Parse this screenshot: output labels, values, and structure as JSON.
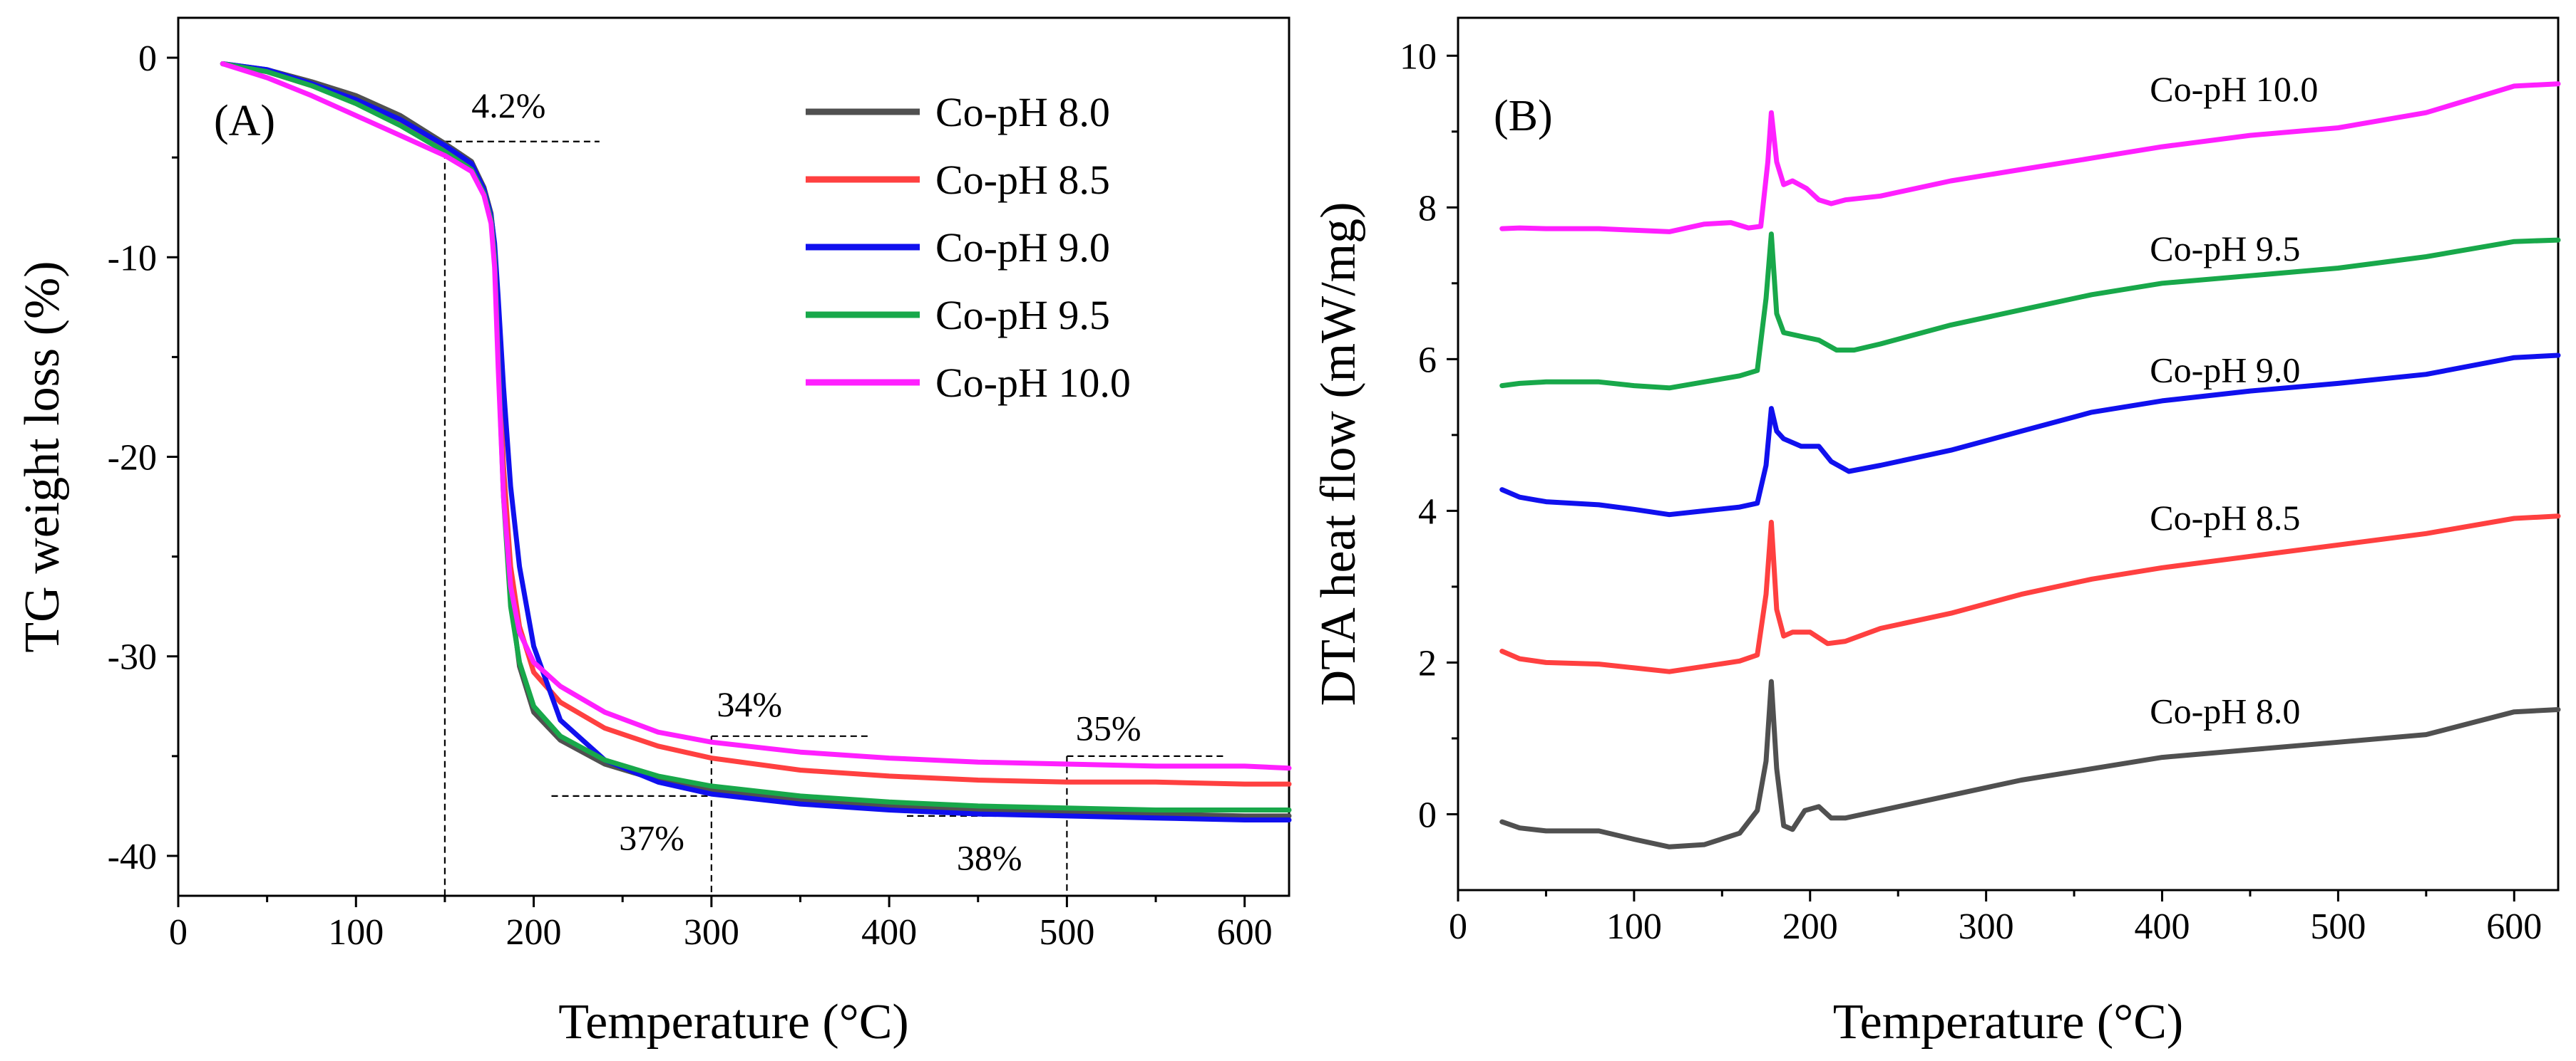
{
  "chart_data": [
    {
      "panel": "A",
      "type": "line",
      "panel_label": "(A)",
      "xlabel": "Temperature (°C)",
      "ylabel": "TG weight loss (%)",
      "xlim": [
        0,
        625
      ],
      "ylim": [
        -42,
        2
      ],
      "xticks": [
        0,
        100,
        200,
        300,
        400,
        500,
        600
      ],
      "yticks": [
        0,
        -10,
        -20,
        -30,
        -40
      ],
      "grid": false,
      "legend_position": "top-right",
      "series": [
        {
          "name": "Co-pH 8.0",
          "color": "#505050",
          "x": [
            25,
            50,
            75,
            100,
            125,
            150,
            165,
            172,
            176,
            178,
            180,
            183,
            187,
            192,
            200,
            215,
            240,
            270,
            300,
            350,
            400,
            450,
            500,
            550,
            600,
            625
          ],
          "y": [
            -0.3,
            -0.6,
            -1.2,
            -1.9,
            -2.9,
            -4.3,
            -5.2,
            -6.5,
            -7.8,
            -9.5,
            -14,
            -21,
            -27,
            -30.5,
            -32.8,
            -34.2,
            -35.4,
            -36.2,
            -36.7,
            -37.2,
            -37.5,
            -37.7,
            -37.8,
            -37.9,
            -38.0,
            -38.0
          ]
        },
        {
          "name": "Co-pH 8.5",
          "color": "#ff4040",
          "x": [
            25,
            50,
            75,
            100,
            125,
            150,
            165,
            172,
            176,
            178,
            180,
            183,
            187,
            192,
            200,
            215,
            240,
            270,
            300,
            350,
            400,
            450,
            500,
            550,
            600,
            625
          ],
          "y": [
            -0.3,
            -0.7,
            -1.4,
            -2.2,
            -3.3,
            -4.6,
            -5.5,
            -6.7,
            -8.0,
            -9.8,
            -14,
            -20.5,
            -25.5,
            -28.5,
            -30.8,
            -32.3,
            -33.6,
            -34.5,
            -35.1,
            -35.7,
            -36.0,
            -36.2,
            -36.3,
            -36.3,
            -36.4,
            -36.4
          ]
        },
        {
          "name": "Co-pH 9.0",
          "color": "#1010ee",
          "x": [
            25,
            50,
            75,
            100,
            125,
            150,
            165,
            172,
            176,
            178,
            180,
            183,
            187,
            192,
            200,
            215,
            240,
            270,
            300,
            350,
            400,
            450,
            500,
            550,
            600,
            625
          ],
          "y": [
            -0.3,
            -0.6,
            -1.3,
            -2.1,
            -3.1,
            -4.4,
            -5.3,
            -6.6,
            -7.9,
            -9.3,
            -12,
            -16.5,
            -21.5,
            -25.5,
            -29.5,
            -33.2,
            -35.2,
            -36.3,
            -36.9,
            -37.4,
            -37.7,
            -37.9,
            -38.0,
            -38.1,
            -38.2,
            -38.2
          ]
        },
        {
          "name": "Co-pH 9.5",
          "color": "#18a84a",
          "x": [
            25,
            50,
            75,
            100,
            125,
            150,
            165,
            172,
            176,
            178,
            180,
            183,
            187,
            192,
            200,
            215,
            240,
            270,
            300,
            350,
            400,
            450,
            500,
            550,
            600,
            625
          ],
          "y": [
            -0.3,
            -0.7,
            -1.4,
            -2.3,
            -3.4,
            -4.7,
            -5.6,
            -6.8,
            -8.1,
            -10,
            -15,
            -22,
            -27.5,
            -30.3,
            -32.5,
            -34.0,
            -35.2,
            -36.0,
            -36.5,
            -37.0,
            -37.3,
            -37.5,
            -37.6,
            -37.7,
            -37.7,
            -37.7
          ]
        },
        {
          "name": "Co-pH 10.0",
          "color": "#ff20ff",
          "x": [
            25,
            50,
            75,
            100,
            125,
            150,
            165,
            172,
            176,
            178,
            180,
            183,
            187,
            192,
            200,
            215,
            240,
            270,
            300,
            350,
            400,
            450,
            500,
            550,
            600,
            625
          ],
          "y": [
            -0.3,
            -1.0,
            -1.9,
            -2.9,
            -3.9,
            -4.9,
            -5.7,
            -6.9,
            -8.3,
            -10.5,
            -15.5,
            -22,
            -26.5,
            -28.8,
            -30.3,
            -31.5,
            -32.8,
            -33.8,
            -34.3,
            -34.8,
            -35.1,
            -35.3,
            -35.4,
            -35.5,
            -35.5,
            -35.6
          ]
        }
      ],
      "annotations": [
        {
          "text": "4.2%",
          "x": 165,
          "y": -3.0
        },
        {
          "text": "34%",
          "x": 303,
          "y": -33.0
        },
        {
          "text": "35%",
          "x": 505,
          "y": -34.2
        },
        {
          "text": "37%",
          "x": 248,
          "y": -39.7
        },
        {
          "text": "38%",
          "x": 438,
          "y": -40.7
        }
      ],
      "reference_lines": [
        {
          "orientation": "vertical",
          "x": 150,
          "y_from": -4.2,
          "y_to": -42
        },
        {
          "orientation": "horizontal",
          "y": -4.2,
          "x_from": 150,
          "x_to": 237
        },
        {
          "orientation": "vertical",
          "x": 300,
          "y_from": -34,
          "y_to": -42
        },
        {
          "orientation": "horizontal",
          "y": -34,
          "x_from": 300,
          "x_to": 390
        },
        {
          "orientation": "horizontal",
          "y": -37,
          "x_from": 210,
          "x_to": 300
        },
        {
          "orientation": "vertical",
          "x": 500,
          "y_from": -35,
          "y_to": -42
        },
        {
          "orientation": "horizontal",
          "y": -35,
          "x_from": 500,
          "x_to": 590
        },
        {
          "orientation": "horizontal",
          "y": -38,
          "x_from": 410,
          "x_to": 500
        }
      ]
    },
    {
      "panel": "B",
      "type": "line",
      "panel_label": "(B)",
      "xlabel": "Temperature (°C)",
      "ylabel": "DTA heat flow (mW/mg)",
      "xlim": [
        0,
        625
      ],
      "ylim": [
        -1,
        10.5
      ],
      "xticks": [
        0,
        100,
        200,
        300,
        400,
        500,
        600
      ],
      "yticks": [
        0,
        2,
        4,
        6,
        8,
        10
      ],
      "grid": false,
      "series": [
        {
          "name": "Co-pH 8.0",
          "label": "Co-pH 8.0",
          "label_at": [
            393,
            1.2
          ],
          "color": "#505050",
          "x": [
            25,
            35,
            50,
            80,
            100,
            120,
            140,
            160,
            170,
            175,
            178,
            181,
            185,
            190,
            197,
            205,
            212,
            220,
            240,
            280,
            320,
            360,
            400,
            450,
            500,
            550,
            600,
            625
          ],
          "y": [
            -0.1,
            -0.18,
            -0.22,
            -0.22,
            -0.33,
            -0.43,
            -0.4,
            -0.25,
            0.05,
            0.7,
            1.75,
            0.6,
            -0.15,
            -0.2,
            0.05,
            0.1,
            -0.05,
            -0.05,
            0.05,
            0.25,
            0.45,
            0.6,
            0.75,
            0.85,
            0.95,
            1.05,
            1.35,
            1.38
          ]
        },
        {
          "name": "Co-pH 8.5",
          "label": "Co-pH 8.5",
          "label_at": [
            393,
            3.75
          ],
          "color": "#ff4040",
          "x": [
            25,
            35,
            50,
            80,
            100,
            120,
            140,
            160,
            170,
            175,
            178,
            181,
            185,
            190,
            200,
            210,
            220,
            240,
            280,
            320,
            360,
            400,
            450,
            500,
            550,
            600,
            625
          ],
          "y": [
            2.15,
            2.05,
            2.0,
            1.98,
            1.93,
            1.88,
            1.95,
            2.02,
            2.1,
            2.9,
            3.85,
            2.7,
            2.35,
            2.4,
            2.4,
            2.25,
            2.28,
            2.45,
            2.65,
            2.9,
            3.1,
            3.25,
            3.4,
            3.55,
            3.7,
            3.9,
            3.93
          ]
        },
        {
          "name": "Co-pH 9.0",
          "label": "Co-pH 9.0",
          "label_at": [
            393,
            5.7
          ],
          "color": "#1010ee",
          "x": [
            25,
            35,
            50,
            80,
            100,
            120,
            140,
            160,
            170,
            175,
            178,
            181,
            185,
            195,
            205,
            212,
            222,
            240,
            280,
            320,
            360,
            400,
            450,
            500,
            550,
            600,
            625
          ],
          "y": [
            4.28,
            4.18,
            4.12,
            4.08,
            4.02,
            3.95,
            4.0,
            4.05,
            4.1,
            4.6,
            5.35,
            5.05,
            4.95,
            4.85,
            4.85,
            4.65,
            4.52,
            4.6,
            4.8,
            5.05,
            5.3,
            5.45,
            5.58,
            5.68,
            5.8,
            6.02,
            6.05
          ]
        },
        {
          "name": "Co-pH 9.5",
          "label": "Co-pH 9.5",
          "label_at": [
            393,
            7.3
          ],
          "color": "#18a84a",
          "x": [
            25,
            35,
            50,
            80,
            100,
            120,
            140,
            160,
            170,
            175,
            178,
            181,
            185,
            195,
            205,
            215,
            225,
            240,
            280,
            320,
            360,
            400,
            450,
            500,
            550,
            600,
            625
          ],
          "y": [
            5.65,
            5.68,
            5.7,
            5.7,
            5.65,
            5.62,
            5.7,
            5.78,
            5.85,
            6.8,
            7.65,
            6.6,
            6.35,
            6.3,
            6.25,
            6.12,
            6.12,
            6.2,
            6.45,
            6.65,
            6.85,
            7.0,
            7.1,
            7.2,
            7.35,
            7.55,
            7.57
          ]
        },
        {
          "name": "Co-pH 10.0",
          "label": "Co-pH 10.0",
          "label_at": [
            393,
            9.4
          ],
          "color": "#ff20ff",
          "x": [
            25,
            35,
            50,
            80,
            100,
            120,
            140,
            155,
            165,
            172,
            176,
            178,
            181,
            185,
            190,
            198,
            205,
            212,
            220,
            240,
            280,
            320,
            360,
            400,
            450,
            500,
            550,
            600,
            625
          ],
          "y": [
            7.72,
            7.73,
            7.72,
            7.72,
            7.7,
            7.68,
            7.78,
            7.8,
            7.73,
            7.75,
            8.6,
            9.25,
            8.6,
            8.3,
            8.35,
            8.25,
            8.1,
            8.05,
            8.1,
            8.15,
            8.35,
            8.5,
            8.65,
            8.8,
            8.95,
            9.05,
            9.25,
            9.6,
            9.63
          ]
        }
      ]
    }
  ]
}
